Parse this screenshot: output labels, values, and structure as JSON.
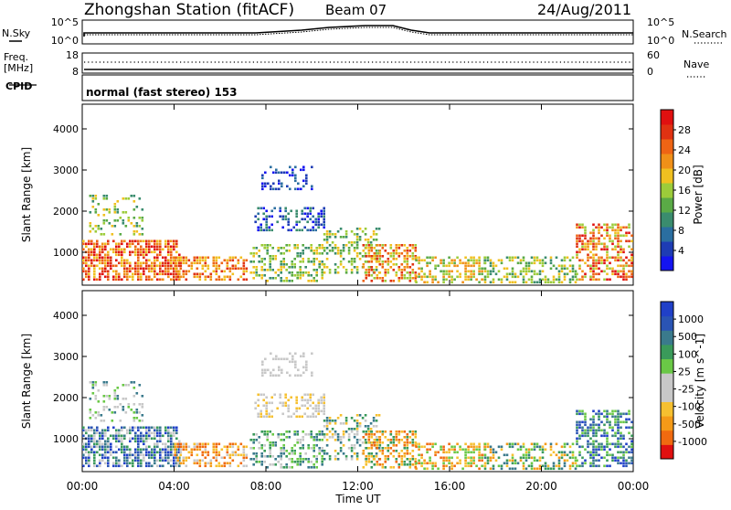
{
  "header": {
    "station": "Zhongshan Station (fitACF)",
    "beam": "Beam 07",
    "date": "24/Aug/2011"
  },
  "noise_panel": {
    "left_label": "N.Sky",
    "right_label": "N.Search",
    "left_top_tick": "10^5",
    "left_bottom_tick": "10^0",
    "right_top_tick": "10^5",
    "right_bottom_tick": "10^0"
  },
  "freq_panel": {
    "left_label_line1": "Freq.",
    "left_label_line2": "[MHz]",
    "left_top_tick": "18",
    "left_bottom_tick": "8",
    "right_label": "Nave",
    "right_top_tick": "60",
    "right_bottom_tick": "0"
  },
  "cpid_panel": {
    "label": "CPID",
    "mode_text": "normal (fast stereo) 153"
  },
  "colors": {
    "power_scale": [
      "#1414f0",
      "#1e3cb4",
      "#2a6ea0",
      "#3a8c6e",
      "#5aaa46",
      "#9ccc3a",
      "#f0c020",
      "#f09018",
      "#ee6414",
      "#e03212",
      "#e01010"
    ],
    "velocity_scale": [
      "#e01010",
      "#f06a10",
      "#f49a18",
      "#f6c030",
      "#c8c8c8",
      "#c8c8c8",
      "#6ac846",
      "#3a9a5a",
      "#3a7a8c",
      "#2a54b4",
      "#2040c8"
    ]
  },
  "chart_data": [
    {
      "type": "heatmap",
      "name": "power",
      "xlabel": "",
      "ylabel": "Slant Range [km]",
      "ylim": [
        200,
        4600
      ],
      "yticks": [
        "1000",
        "2000",
        "3000",
        "4000"
      ],
      "xlim_hours": [
        0,
        24
      ],
      "colorbar_label": "Power [dB]",
      "colorbar_ticks": [
        "4",
        "8",
        "12",
        "16",
        "20",
        "24",
        "28"
      ],
      "grid": false
    },
    {
      "type": "heatmap",
      "name": "velocity",
      "xlabel": "Time UT",
      "ylabel": "Slant Range [km]",
      "ylim": [
        200,
        4600
      ],
      "yticks": [
        "1000",
        "2000",
        "3000",
        "4000"
      ],
      "xticks": [
        "00:00",
        "04:00",
        "08:00",
        "12:00",
        "16:00",
        "20:00",
        "00:00"
      ],
      "colorbar_label": "Velocity [m s^-1]",
      "colorbar_ticks": [
        "1000",
        "500",
        "100",
        "25",
        "-25",
        "-100",
        "-500",
        "-1000"
      ],
      "grid": false
    }
  ]
}
